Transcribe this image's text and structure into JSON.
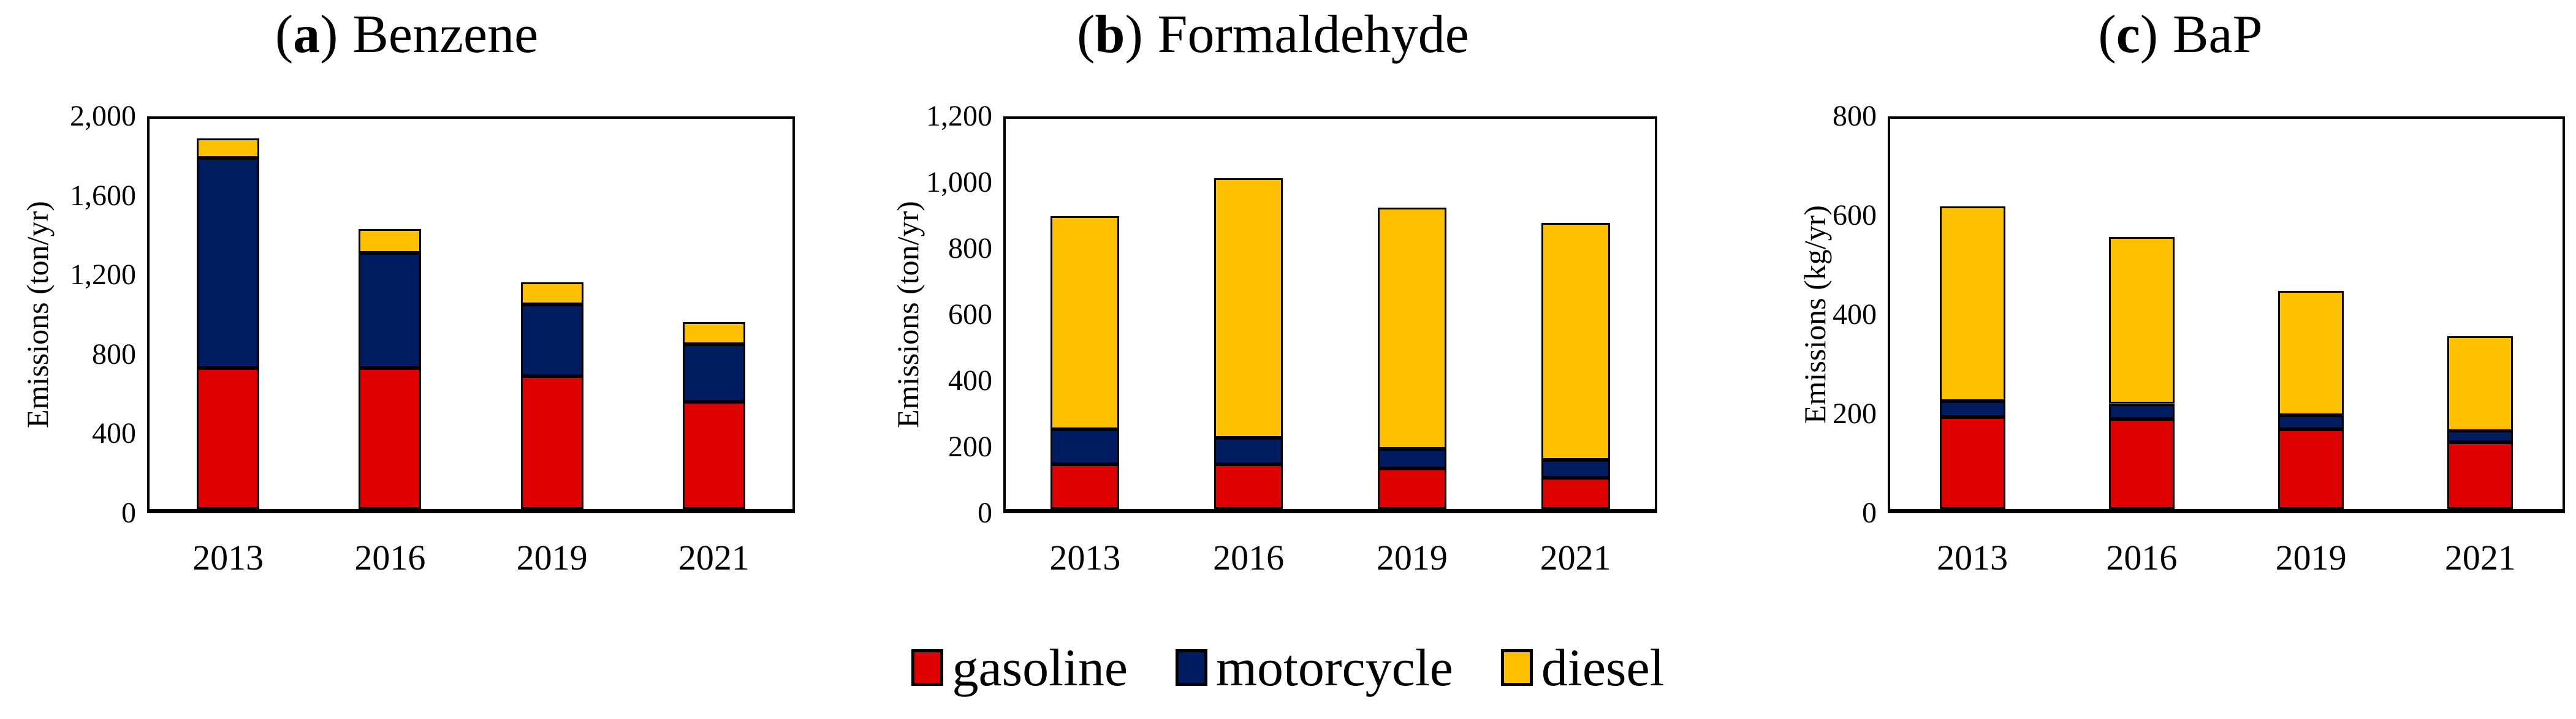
{
  "figure": {
    "background": "#FFFFFF",
    "panels": [
      {
        "label_open": "(",
        "label_letter": "a",
        "label_close": ")",
        "title_text": "Benzene",
        "y_label": "Emissions (ton/yr)"
      },
      {
        "label_open": "(",
        "label_letter": "b",
        "label_close": ")",
        "title_text": "Formaldehyde",
        "y_label": "Emissions (ton/yr)"
      },
      {
        "label_open": "(",
        "label_letter": "c",
        "label_close": ")",
        "title_text": "BaP",
        "y_label": "Emissions (kg/yr)"
      }
    ]
  },
  "legend": {
    "items": [
      {
        "label": "gasoline",
        "color": "#DF0000"
      },
      {
        "label": "motorcycle",
        "color": "#001C61"
      },
      {
        "label": "diesel",
        "color": "#FFC000"
      }
    ]
  },
  "colors": {
    "gasoline": "#DF0000",
    "motorcycle": "#001C61",
    "diesel": "#FFC000",
    "outline": "#000000",
    "background": "#FFFFFF"
  },
  "chart_data": [
    {
      "type": "bar",
      "stacked": true,
      "title": "(a) Benzene",
      "categories": [
        "2013",
        "2016",
        "2019",
        "2021"
      ],
      "series": [
        {
          "name": "gasoline",
          "color": "#DF0000",
          "values": [
            710,
            710,
            670,
            540
          ]
        },
        {
          "name": "motorcycle",
          "color": "#001C61",
          "values": [
            1060,
            580,
            360,
            290
          ]
        },
        {
          "name": "diesel",
          "color": "#FFC000",
          "values": [
            100,
            120,
            110,
            110
          ]
        }
      ],
      "totals": [
        1870,
        1410,
        1140,
        940
      ],
      "xlabel": "",
      "ylabel": "Emissions (ton/yr)",
      "ylim": [
        0,
        2000
      ],
      "ytick_values": [
        0,
        400,
        800,
        1200,
        1600,
        2000
      ],
      "ytick_labels": [
        "0",
        "400",
        "800",
        "1,200",
        "1,600",
        "2,000"
      ],
      "grid": false,
      "legend_position": "bottom-shared"
    },
    {
      "type": "bar",
      "stacked": true,
      "title": "(b) Formaldehyde",
      "categories": [
        "2013",
        "2016",
        "2019",
        "2021"
      ],
      "series": [
        {
          "name": "gasoline",
          "color": "#DF0000",
          "values": [
            135,
            135,
            122,
            95
          ]
        },
        {
          "name": "motorcycle",
          "color": "#001C61",
          "values": [
            105,
            80,
            60,
            53
          ]
        },
        {
          "name": "diesel",
          "color": "#FFC000",
          "values": [
            645,
            785,
            730,
            717
          ]
        }
      ],
      "totals": [
        885,
        1000,
        912,
        865
      ],
      "xlabel": "",
      "ylabel": "Emissions (ton/yr)",
      "ylim": [
        0,
        1200
      ],
      "ytick_values": [
        0,
        200,
        400,
        600,
        800,
        1000,
        1200
      ],
      "ytick_labels": [
        "0",
        "200",
        "400",
        "600",
        "800",
        "1,000",
        "1,200"
      ],
      "grid": false,
      "legend_position": "bottom-shared"
    },
    {
      "type": "bar",
      "stacked": true,
      "title": "(c) BaP",
      "categories": [
        "2013",
        "2016",
        "2019",
        "2021"
      ],
      "series": [
        {
          "name": "gasoline",
          "color": "#DF0000",
          "values": [
            185,
            182,
            160,
            134
          ]
        },
        {
          "name": "motorcycle",
          "color": "#001C61",
          "values": [
            32,
            30,
            29,
            23
          ]
        },
        {
          "name": "diesel",
          "color": "#FFC000",
          "values": [
            393,
            336,
            251,
            191
          ]
        }
      ],
      "totals": [
        610,
        548,
        440,
        348
      ],
      "xlabel": "",
      "ylabel": "Emissions (kg/yr)",
      "ylim": [
        0,
        800
      ],
      "ytick_values": [
        0,
        200,
        400,
        600,
        800
      ],
      "ytick_labels": [
        "0",
        "200",
        "400",
        "600",
        "800"
      ],
      "grid": false,
      "legend_position": "bottom-shared"
    }
  ]
}
